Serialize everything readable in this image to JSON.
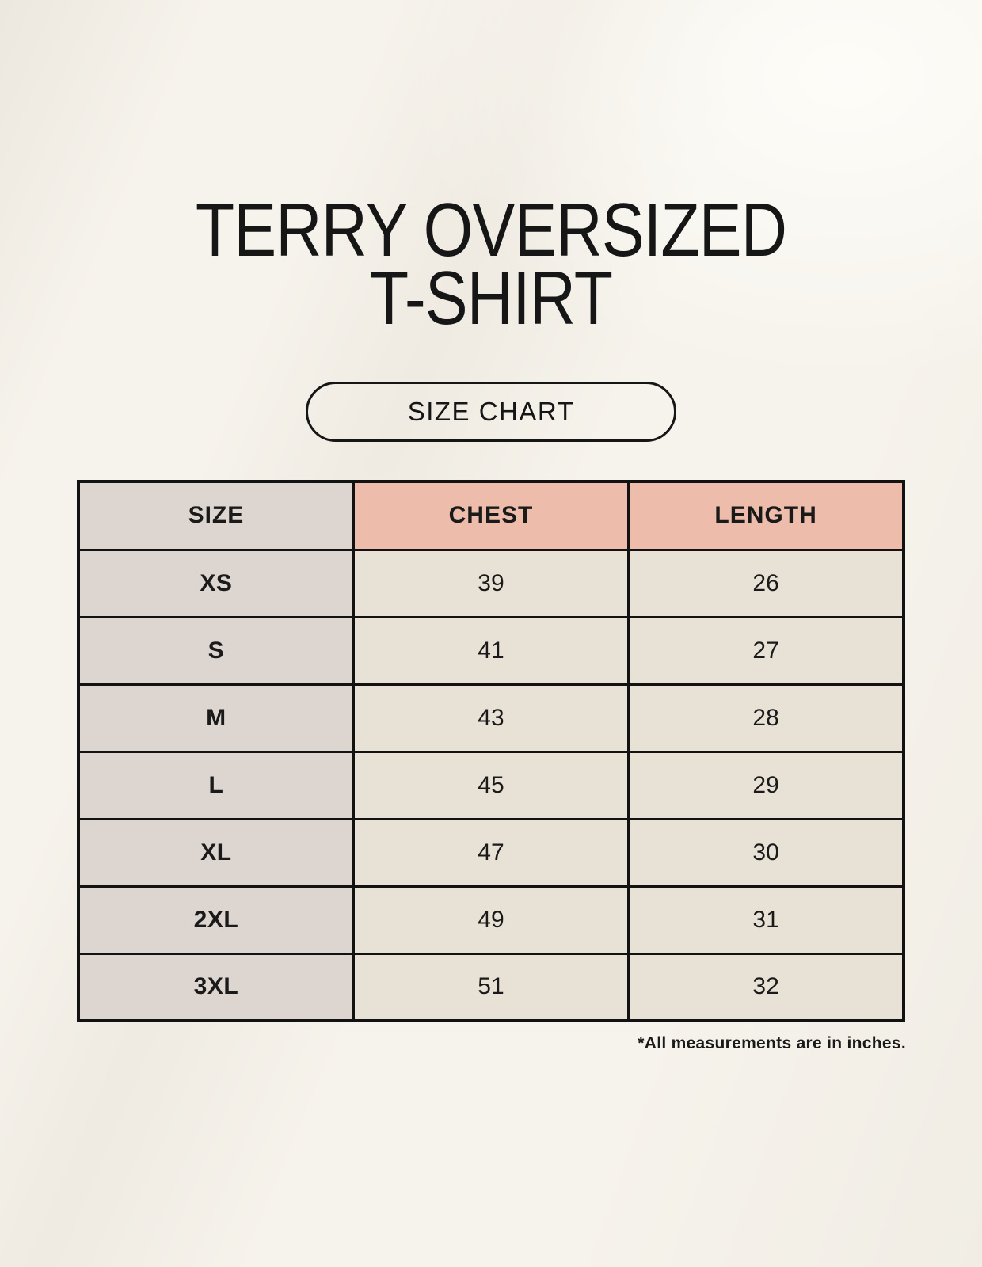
{
  "header": {
    "title_line1": "TERRY OVERSIZED",
    "title_line2": "T-SHIRT",
    "badge_label": "SIZE CHART"
  },
  "chart_data": {
    "type": "table",
    "title": "TERRY OVERSIZED T-SHIRT",
    "subtitle": "SIZE CHART",
    "columns": [
      "SIZE",
      "CHEST",
      "LENGTH"
    ],
    "rows": [
      {
        "size": "XS",
        "chest": 39,
        "length": 26
      },
      {
        "size": "S",
        "chest": 41,
        "length": 27
      },
      {
        "size": "M",
        "chest": 43,
        "length": 28
      },
      {
        "size": "L",
        "chest": 45,
        "length": 29
      },
      {
        "size": "XL",
        "chest": 47,
        "length": 30
      },
      {
        "size": "2XL",
        "chest": 49,
        "length": 31
      },
      {
        "size": "3XL",
        "chest": 51,
        "length": 32
      }
    ],
    "units": "inches"
  },
  "footer": {
    "note": "*All measurements are in inches."
  },
  "colors": {
    "background": "#f6f3ec",
    "header_accent": "#edbcab",
    "size_column": "#ddd6d0",
    "data_cell": "#e8e1d5",
    "border": "#121212",
    "text": "#1a1a1a"
  }
}
